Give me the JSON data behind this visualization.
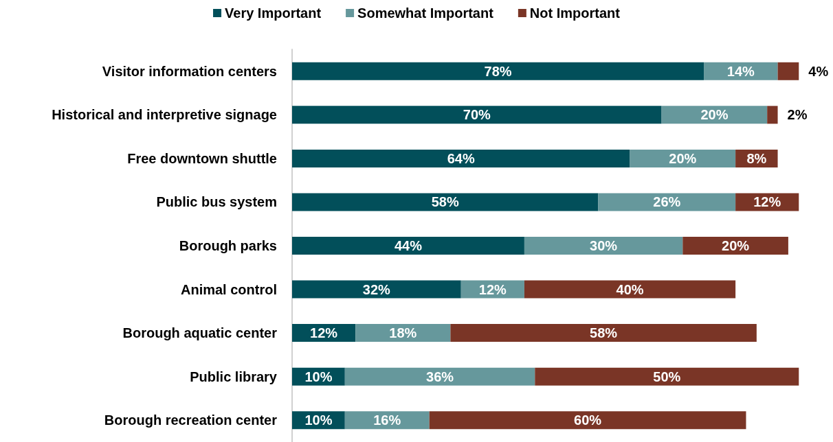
{
  "chart_data": {
    "type": "bar",
    "orientation": "horizontal",
    "stacked": true,
    "legend": "top",
    "grid": false,
    "tick_labels": "y",
    "categories": [
      "Visitor information centers",
      "Historical and interpretive signage",
      "Free downtown shuttle",
      "Public bus system",
      "Borough parks",
      "Animal control",
      "Borough aquatic center",
      "Public library",
      "Borough recreation center"
    ],
    "series": [
      {
        "name": "Very Important",
        "color": "#024f5a",
        "values": [
          78,
          70,
          64,
          58,
          44,
          32,
          12,
          10,
          10
        ],
        "value_labels": [
          "78%",
          "70%",
          "64%",
          "58%",
          "44%",
          "32%",
          "12%",
          "10%",
          "10%"
        ]
      },
      {
        "name": "Somewhat Important",
        "color": "#66989c",
        "values": [
          14,
          20,
          20,
          26,
          30,
          12,
          18,
          36,
          16
        ],
        "value_labels": [
          "14%",
          "20%",
          "20%",
          "26%",
          "30%",
          "12%",
          "18%",
          "36%",
          "16%"
        ]
      },
      {
        "name": "Not Important",
        "color": "#7a3526",
        "values": [
          4,
          2,
          8,
          12,
          20,
          40,
          58,
          50,
          60
        ],
        "value_labels": [
          "4%",
          "2%",
          "8%",
          "12%",
          "20%",
          "40%",
          "58%",
          "50%",
          "60%"
        ]
      }
    ]
  }
}
